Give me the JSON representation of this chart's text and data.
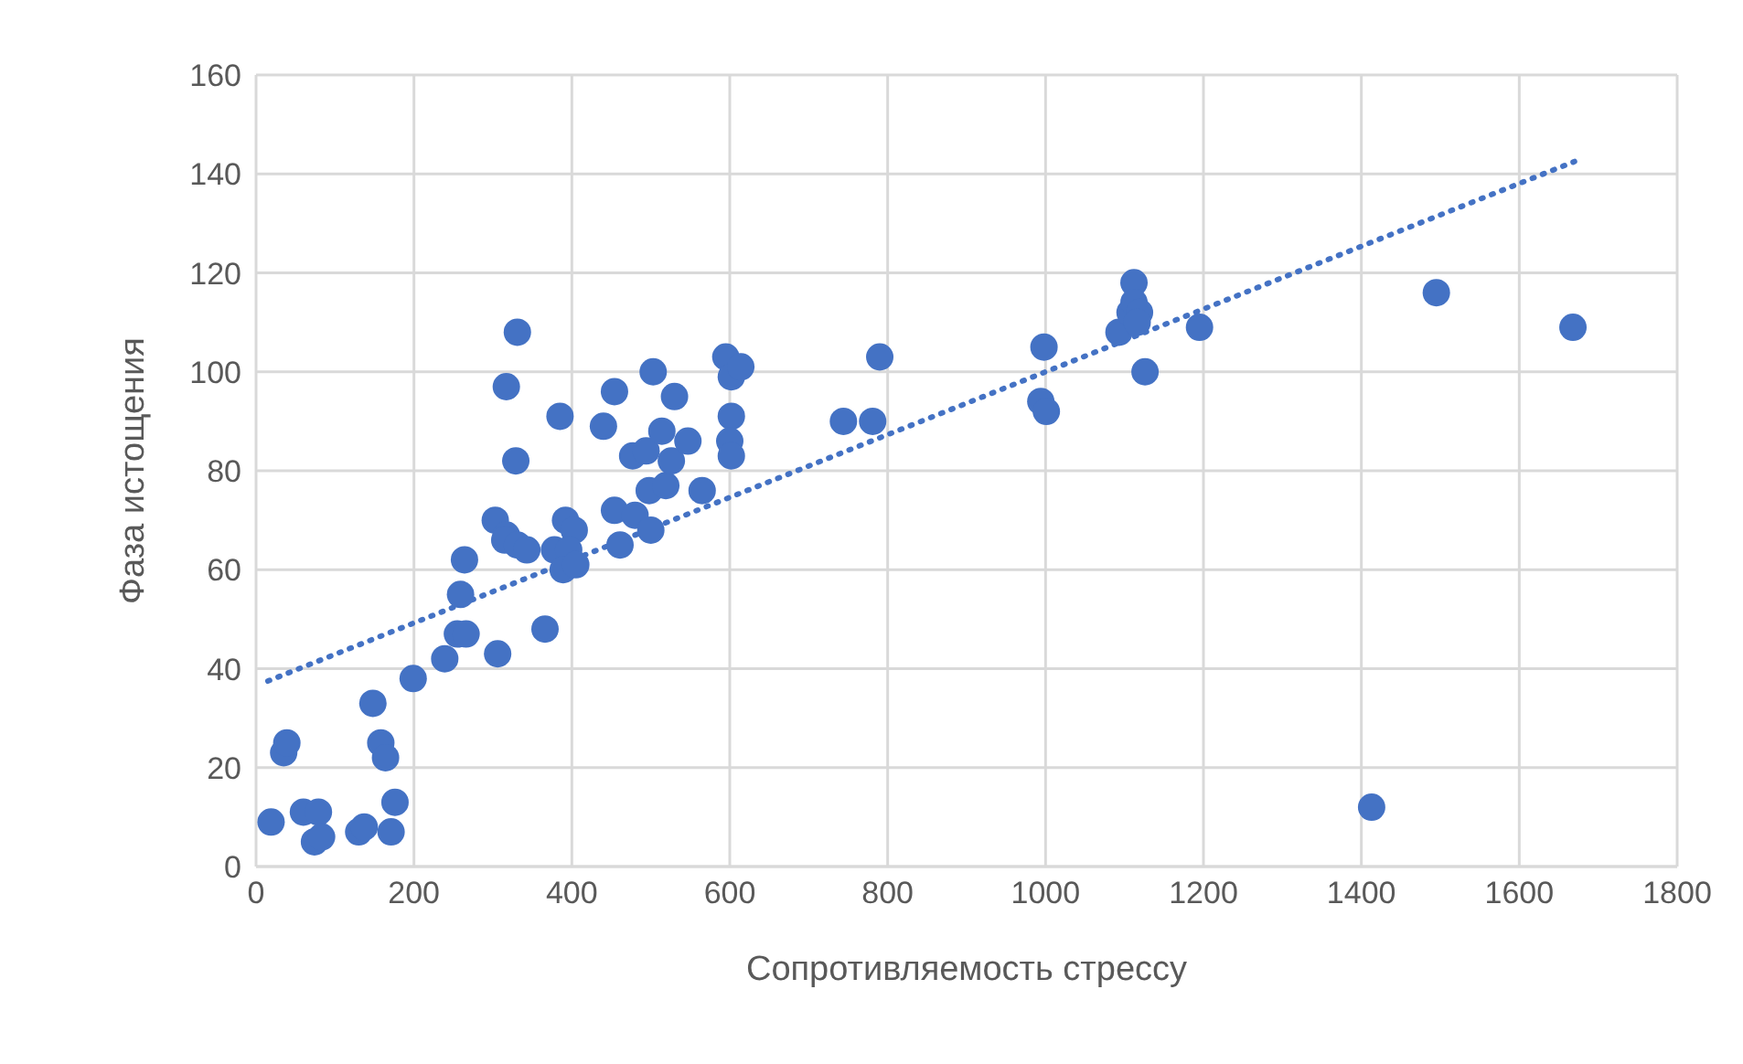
{
  "chart_data": {
    "type": "scatter",
    "xlabel": "Сопротивляемость стрессу",
    "ylabel": "Фаза истощения",
    "xlim": [
      0,
      1800
    ],
    "xticks": [
      0,
      200,
      400,
      600,
      800,
      1000,
      1200,
      1400,
      1600,
      1800
    ],
    "ylim": [
      0,
      160
    ],
    "yticks": [
      0,
      20,
      40,
      60,
      80,
      100,
      120,
      140,
      160
    ],
    "grid": true,
    "marker": "circle",
    "series": [
      {
        "color": "#4472c4",
        "x": [
          19,
          35,
          39,
          60,
          79,
          74,
          83,
          130,
          137,
          148,
          158,
          164,
          176,
          171,
          199,
          239,
          255,
          266,
          259,
          264,
          303,
          317,
          315,
          331,
          343,
          306,
          366,
          317,
          331,
          329,
          385,
          378,
          392,
          403,
          396,
          389,
          405,
          440,
          454,
          454,
          461,
          477,
          494,
          480,
          503,
          498,
          500,
          514,
          519,
          526,
          530,
          547,
          565,
          595,
          602,
          602,
          600,
          602,
          614,
          744,
          781,
          790,
          998,
          994,
          1001,
          1093,
          1107,
          1112,
          1112,
          1119,
          1116,
          1126,
          1195,
          1413,
          1495,
          1668
        ],
        "values": [
          9,
          23,
          25,
          11,
          11,
          5,
          6,
          7,
          8,
          33,
          25,
          22,
          13,
          7,
          38,
          42,
          47,
          47,
          55,
          62,
          70,
          67,
          66,
          65,
          64,
          43,
          48,
          97,
          108,
          82,
          91,
          64,
          70,
          68,
          64,
          60,
          61,
          89,
          96,
          72,
          65,
          83,
          84,
          71,
          100,
          76,
          68,
          88,
          77,
          82,
          95,
          86,
          76,
          103,
          99,
          91,
          86,
          83,
          101,
          90,
          90,
          103,
          105,
          94,
          92,
          108,
          112,
          118,
          114,
          112,
          110,
          100,
          109,
          12,
          116,
          109
        ]
      },
      {
        "type": "line",
        "color": "#4472c4",
        "line_style": "dotted",
        "marker": "none",
        "x": [
          15,
          1670
        ],
        "values": [
          37.5,
          142.5
        ]
      }
    ]
  }
}
